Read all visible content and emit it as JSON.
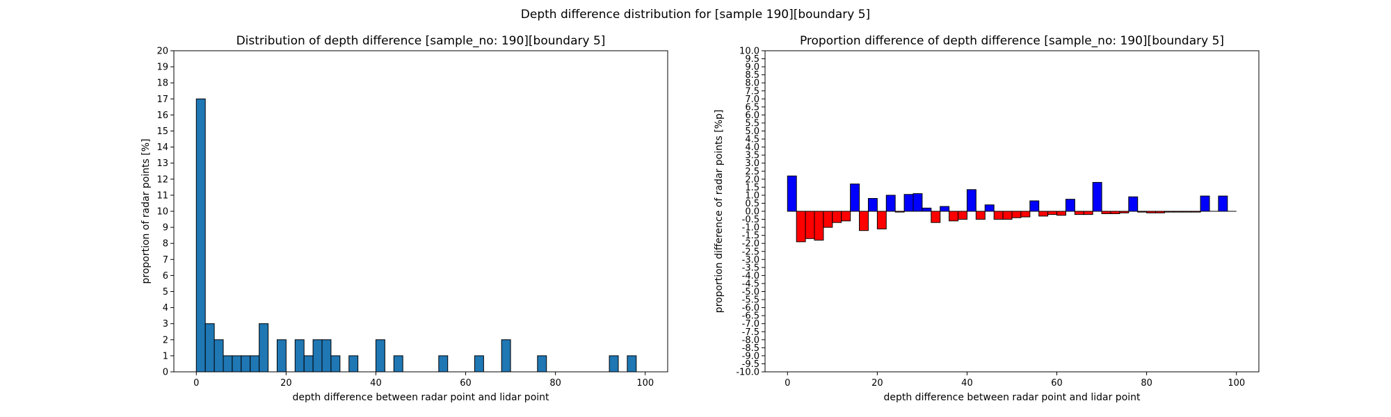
{
  "suptitle": "Depth difference distribution for [sample 190][boundary 5]",
  "chart_data": [
    {
      "type": "bar",
      "title": "Distribution of depth difference [sample_no: 190][boundary 5]",
      "xlabel": "depth difference between radar point and lidar point",
      "ylabel": "proportion of radar points [%]",
      "xlim": [
        -5,
        105
      ],
      "ylim": [
        0,
        20
      ],
      "xticks": [
        0,
        20,
        40,
        60,
        80,
        100
      ],
      "yticks": [
        0,
        1,
        2,
        3,
        4,
        5,
        6,
        7,
        8,
        9,
        10,
        11,
        12,
        13,
        14,
        15,
        16,
        17,
        18,
        19,
        20
      ],
      "bin_width": 2,
      "color": "#1f77b4",
      "edgecolor": "#000000",
      "x": [
        0,
        2,
        4,
        6,
        8,
        10,
        12,
        14,
        16,
        18,
        20,
        22,
        24,
        26,
        28,
        30,
        32,
        34,
        36,
        38,
        40,
        42,
        44,
        46,
        48,
        50,
        52,
        54,
        56,
        58,
        60,
        62,
        64,
        66,
        68,
        70,
        72,
        74,
        76,
        78,
        80,
        82,
        84,
        86,
        88,
        90,
        92,
        94,
        96,
        98
      ],
      "values": [
        17,
        3,
        2,
        1,
        1,
        1,
        1,
        3,
        0,
        2,
        0,
        2,
        1,
        2,
        2,
        1,
        0,
        1,
        0,
        0,
        2,
        0,
        1,
        0,
        0,
        0,
        0,
        1,
        0,
        0,
        0,
        1,
        0,
        0,
        2,
        0,
        0,
        0,
        1,
        0,
        0,
        0,
        0,
        0,
        0,
        0,
        1,
        0,
        1,
        0
      ]
    },
    {
      "type": "bar",
      "title": "Proportion difference of depth difference [sample_no: 190][boundary 5]",
      "xlabel": "depth difference between radar point and lidar point",
      "ylabel": "proportion difference of radar points [%p]",
      "xlim": [
        -5,
        105
      ],
      "ylim": [
        -10,
        10
      ],
      "xticks": [
        0,
        20,
        40,
        60,
        80,
        100
      ],
      "yticks": [
        "-10.0",
        "-9.5",
        "-9.0",
        "-8.5",
        "-8.0",
        "-7.5",
        "-7.0",
        "-6.5",
        "-6.0",
        "-5.5",
        "-5.0",
        "-4.5",
        "-4.0",
        "-3.5",
        "-3.0",
        "-2.5",
        "-2.0",
        "-1.5",
        "-1.0",
        "-0.5",
        "0.0",
        "0.5",
        "1.0",
        "1.5",
        "2.0",
        "2.5",
        "3.0",
        "3.5",
        "4.0",
        "4.5",
        "5.0",
        "5.5",
        "6.0",
        "6.5",
        "7.0",
        "7.5",
        "8.0",
        "8.5",
        "9.0",
        "9.5",
        "10.0"
      ],
      "bin_width": 2,
      "positive_color": "#0000ff",
      "negative_color": "#ff0000",
      "edgecolor": "#000000",
      "baseline_range": [
        0,
        100
      ],
      "x": [
        0,
        2,
        4,
        6,
        8,
        10,
        12,
        14,
        16,
        18,
        20,
        22,
        24,
        26,
        28,
        30,
        32,
        34,
        36,
        38,
        40,
        42,
        44,
        46,
        48,
        50,
        52,
        54,
        56,
        58,
        60,
        62,
        64,
        66,
        68,
        70,
        72,
        74,
        76,
        78,
        80,
        82,
        84,
        86,
        88,
        90,
        92,
        94,
        96,
        98
      ],
      "values": [
        2.2,
        -1.9,
        -1.7,
        -1.8,
        -1.0,
        -0.7,
        -0.6,
        1.7,
        -1.2,
        0.8,
        -1.1,
        1.0,
        -0.05,
        1.05,
        1.1,
        0.2,
        -0.7,
        0.3,
        -0.6,
        -0.5,
        1.35,
        -0.5,
        0.4,
        -0.5,
        -0.5,
        -0.4,
        -0.35,
        0.65,
        -0.3,
        -0.2,
        -0.25,
        0.75,
        -0.2,
        -0.2,
        1.8,
        -0.15,
        -0.15,
        -0.1,
        0.9,
        -0.05,
        -0.1,
        -0.1,
        -0.05,
        -0.05,
        -0.05,
        -0.05,
        0.95,
        0.0,
        0.95,
        0.0
      ]
    }
  ]
}
